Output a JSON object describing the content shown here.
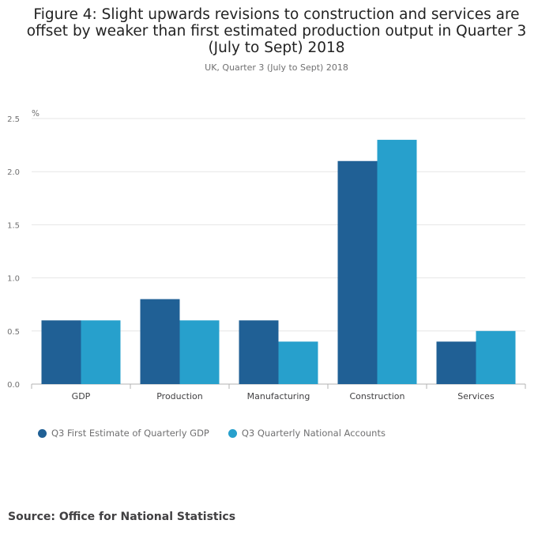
{
  "title": "Figure 4: Slight upwards revisions to construction and services are offset by weaker than first estimated production output in Quarter 3 (July to Sept) 2018",
  "subtitle": "UK, Quarter 3 (July to Sept) 2018",
  "source": "Source: Office for National Statistics",
  "colors": {
    "series1": "#206095",
    "series2": "#27A0CC"
  },
  "chart_data": {
    "type": "bar",
    "categories": [
      "GDP",
      "Production",
      "Manufacturing",
      "Construction",
      "Services"
    ],
    "series": [
      {
        "name": "Q3 First Estimate of Quarterly GDP",
        "values": [
          0.6,
          0.8,
          0.6,
          2.1,
          0.4
        ]
      },
      {
        "name": "Q3 Quarterly National Accounts",
        "values": [
          0.6,
          0.6,
          0.4,
          2.3,
          0.5
        ]
      }
    ],
    "ylabel": "%",
    "ylim": [
      0,
      2.5
    ],
    "yticks": [
      "0.0",
      "0.5",
      "1.0",
      "1.5",
      "2.0",
      "2.5"
    ],
    "grid": true,
    "legend": "bottom-left"
  }
}
